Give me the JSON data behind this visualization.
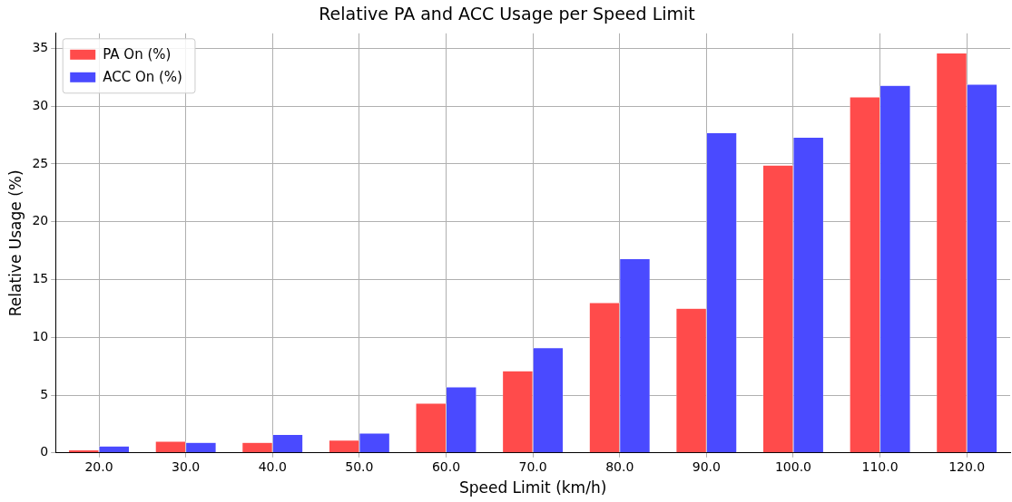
{
  "chart_data": {
    "type": "bar",
    "title": "Relative PA and ACC Usage per Speed Limit",
    "xlabel": "Speed Limit (km/h)",
    "ylabel": "Relative Usage (%)",
    "categories": [
      "20.0",
      "30.0",
      "40.0",
      "50.0",
      "60.0",
      "70.0",
      "80.0",
      "90.0",
      "100.0",
      "110.0",
      "120.0"
    ],
    "series": [
      {
        "name": "PA On (%)",
        "color": "#ff4b4b",
        "values": [
          0.25,
          1.0,
          0.9,
          1.1,
          4.3,
          7.1,
          13.0,
          12.5,
          24.9,
          30.8,
          34.6
        ]
      },
      {
        "name": "ACC On (%)",
        "color": "#4a4aff",
        "values": [
          0.6,
          0.9,
          1.6,
          1.7,
          5.7,
          9.1,
          16.8,
          27.7,
          27.3,
          31.8,
          31.9
        ]
      }
    ],
    "ylim": [
      0,
      36.3
    ],
    "yticks": [
      0,
      5,
      10,
      15,
      20,
      25,
      30,
      35
    ],
    "grid": true,
    "legend": "top left"
  }
}
